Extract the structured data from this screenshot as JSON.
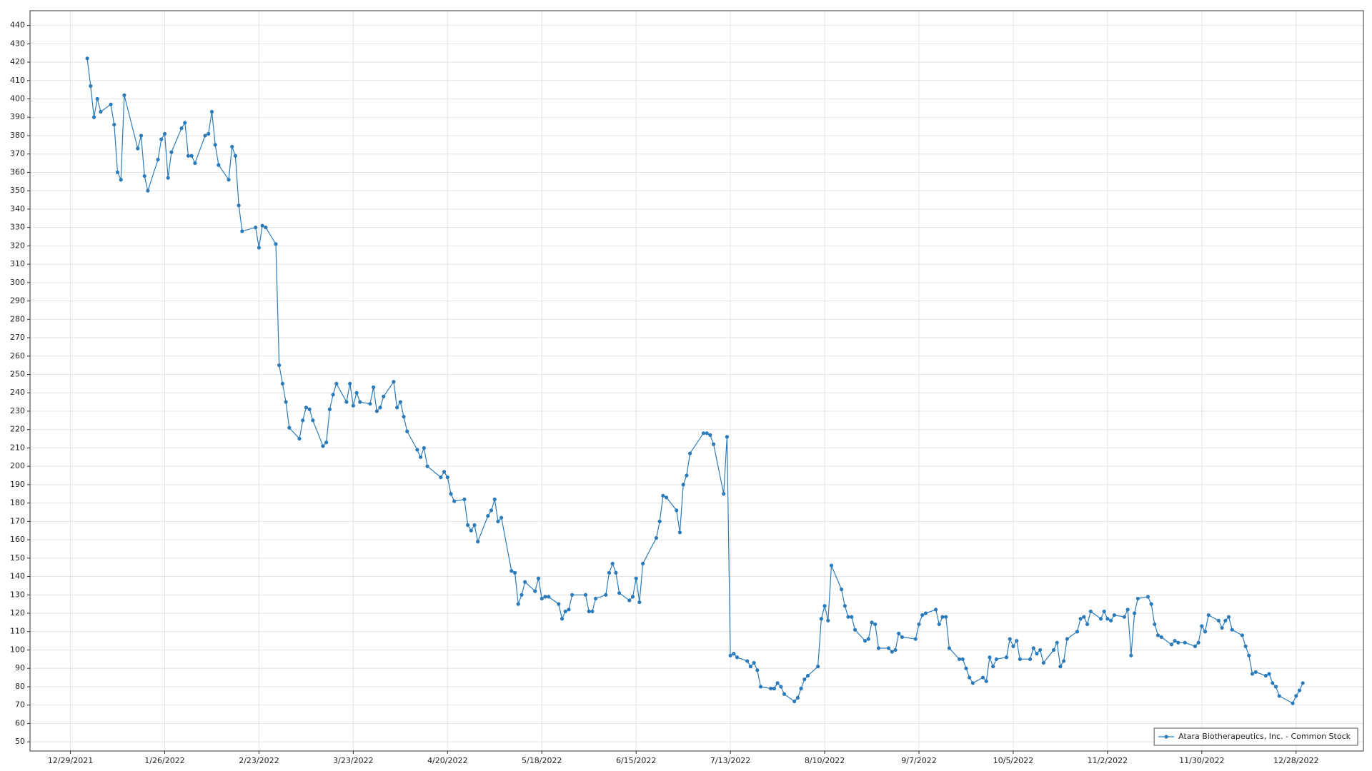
{
  "chart_data": {
    "type": "line",
    "x": [
      "1/3/2022",
      "1/4/2022",
      "1/5/2022",
      "1/6/2022",
      "1/7/2022",
      "1/10/2022",
      "1/11/2022",
      "1/12/2022",
      "1/13/2022",
      "1/14/2022",
      "1/18/2022",
      "1/19/2022",
      "1/20/2022",
      "1/21/2022",
      "1/24/2022",
      "1/25/2022",
      "1/26/2022",
      "1/27/2022",
      "1/28/2022",
      "1/31/2022",
      "2/1/2022",
      "2/2/2022",
      "2/3/2022",
      "2/4/2022",
      "2/7/2022",
      "2/8/2022",
      "2/9/2022",
      "2/10/2022",
      "2/11/2022",
      "2/14/2022",
      "2/15/2022",
      "2/16/2022",
      "2/17/2022",
      "2/18/2022",
      "2/22/2022",
      "2/23/2022",
      "2/24/2022",
      "2/25/2022",
      "2/28/2022",
      "3/1/2022",
      "3/2/2022",
      "3/3/2022",
      "3/4/2022",
      "3/7/2022",
      "3/8/2022",
      "3/9/2022",
      "3/10/2022",
      "3/11/2022",
      "3/14/2022",
      "3/15/2022",
      "3/16/2022",
      "3/17/2022",
      "3/18/2022",
      "3/21/2022",
      "3/22/2022",
      "3/23/2022",
      "3/24/2022",
      "3/25/2022",
      "3/28/2022",
      "3/29/2022",
      "3/30/2022",
      "3/31/2022",
      "4/1/2022",
      "4/4/2022",
      "4/5/2022",
      "4/6/2022",
      "4/7/2022",
      "4/8/2022",
      "4/11/2022",
      "4/12/2022",
      "4/13/2022",
      "4/14/2022",
      "4/18/2022",
      "4/19/2022",
      "4/20/2022",
      "4/21/2022",
      "4/22/2022",
      "4/25/2022",
      "4/26/2022",
      "4/27/2022",
      "4/28/2022",
      "4/29/2022",
      "5/2/2022",
      "5/3/2022",
      "5/4/2022",
      "5/5/2022",
      "5/6/2022",
      "5/9/2022",
      "5/10/2022",
      "5/11/2022",
      "5/12/2022",
      "5/13/2022",
      "5/16/2022",
      "5/17/2022",
      "5/18/2022",
      "5/19/2022",
      "5/20/2022",
      "5/23/2022",
      "5/24/2022",
      "5/25/2022",
      "5/26/2022",
      "5/27/2022",
      "5/31/2022",
      "6/1/2022",
      "6/2/2022",
      "6/3/2022",
      "6/6/2022",
      "6/7/2022",
      "6/8/2022",
      "6/9/2022",
      "6/10/2022",
      "6/13/2022",
      "6/14/2022",
      "6/15/2022",
      "6/16/2022",
      "6/17/2022",
      "6/21/2022",
      "6/22/2022",
      "6/23/2022",
      "6/24/2022",
      "6/27/2022",
      "6/28/2022",
      "6/29/2022",
      "6/30/2022",
      "7/1/2022",
      "7/5/2022",
      "7/6/2022",
      "7/7/2022",
      "7/8/2022",
      "7/11/2022",
      "7/12/2022",
      "7/13/2022",
      "7/14/2022",
      "7/15/2022",
      "7/18/2022",
      "7/19/2022",
      "7/20/2022",
      "7/21/2022",
      "7/22/2022",
      "7/25/2022",
      "7/26/2022",
      "7/27/2022",
      "7/28/2022",
      "7/29/2022",
      "8/1/2022",
      "8/2/2022",
      "8/3/2022",
      "8/4/2022",
      "8/5/2022",
      "8/8/2022",
      "8/9/2022",
      "8/10/2022",
      "8/11/2022",
      "8/12/2022",
      "8/15/2022",
      "8/16/2022",
      "8/17/2022",
      "8/18/2022",
      "8/19/2022",
      "8/22/2022",
      "8/23/2022",
      "8/24/2022",
      "8/25/2022",
      "8/26/2022",
      "8/29/2022",
      "8/30/2022",
      "8/31/2022",
      "9/1/2022",
      "9/2/2022",
      "9/6/2022",
      "9/7/2022",
      "9/8/2022",
      "9/9/2022",
      "9/12/2022",
      "9/13/2022",
      "9/14/2022",
      "9/15/2022",
      "9/16/2022",
      "9/19/2022",
      "9/20/2022",
      "9/21/2022",
      "9/22/2022",
      "9/23/2022",
      "9/26/2022",
      "9/27/2022",
      "9/28/2022",
      "9/29/2022",
      "9/30/2022",
      "10/3/2022",
      "10/4/2022",
      "10/5/2022",
      "10/6/2022",
      "10/7/2022",
      "10/10/2022",
      "10/11/2022",
      "10/12/2022",
      "10/13/2022",
      "10/14/2022",
      "10/17/2022",
      "10/18/2022",
      "10/19/2022",
      "10/20/2022",
      "10/21/2022",
      "10/24/2022",
      "10/25/2022",
      "10/26/2022",
      "10/27/2022",
      "10/28/2022",
      "10/31/2022",
      "11/1/2022",
      "11/2/2022",
      "11/3/2022",
      "11/4/2022",
      "11/7/2022",
      "11/8/2022",
      "11/9/2022",
      "11/10/2022",
      "11/11/2022",
      "11/14/2022",
      "11/15/2022",
      "11/16/2022",
      "11/17/2022",
      "11/18/2022",
      "11/21/2022",
      "11/22/2022",
      "11/23/2022",
      "11/25/2022",
      "11/28/2022",
      "11/29/2022",
      "11/30/2022",
      "12/1/2022",
      "12/2/2022",
      "12/5/2022",
      "12/6/2022",
      "12/7/2022",
      "12/8/2022",
      "12/9/2022",
      "12/12/2022",
      "12/13/2022",
      "12/14/2022",
      "12/15/2022",
      "12/16/2022",
      "12/19/2022",
      "12/20/2022",
      "12/21/2022",
      "12/22/2022",
      "12/23/2022",
      "12/27/2022",
      "12/28/2022",
      "12/29/2022",
      "12/30/2022"
    ],
    "series": [
      {
        "name": "Atara Biotherapeutics, Inc. - Common Stock",
        "color": "#2b7bba",
        "values": [
          422,
          407,
          390,
          400,
          393,
          397,
          386,
          360,
          356,
          402,
          373,
          380,
          358,
          350,
          367,
          378,
          381,
          357,
          371,
          384,
          387,
          369,
          369,
          365,
          380,
          381,
          393,
          375,
          364,
          356,
          374,
          369,
          342,
          328,
          330,
          319,
          331,
          330,
          321,
          255,
          245,
          235,
          221,
          215,
          225,
          232,
          231,
          225,
          211,
          213,
          231,
          239,
          245,
          235,
          245,
          233,
          240,
          235,
          234,
          243,
          230,
          232,
          238,
          246,
          232,
          235,
          227,
          219,
          209,
          205,
          210,
          200,
          194,
          197,
          194,
          185,
          181,
          182,
          168,
          165,
          168,
          159,
          173,
          176,
          182,
          170,
          172,
          143,
          142,
          125,
          130,
          137,
          132,
          139,
          128,
          129,
          129,
          125,
          117,
          121,
          122,
          130,
          130,
          121,
          121,
          128,
          130,
          142,
          147,
          142,
          131,
          127,
          129,
          139,
          126,
          147,
          161,
          170,
          184,
          183,
          176,
          164,
          190,
          195,
          207,
          218,
          218,
          217,
          212,
          185,
          216,
          97,
          98,
          96,
          94,
          91,
          93,
          89,
          80,
          79,
          79,
          82,
          80,
          76,
          72,
          74,
          79,
          84,
          86,
          91,
          117,
          124,
          116,
          146,
          133,
          124,
          118,
          118,
          111,
          105,
          106,
          115,
          114,
          101,
          101,
          99,
          100,
          109,
          107,
          106,
          114,
          119,
          120,
          122,
          114,
          118,
          118,
          101,
          95,
          95,
          90,
          85,
          82,
          85,
          83,
          96,
          91,
          95,
          96,
          106,
          102,
          105,
          95,
          95,
          101,
          98,
          100,
          93,
          100,
          104,
          91,
          94,
          106,
          110,
          117,
          118,
          114,
          121,
          117,
          121,
          117,
          116,
          119,
          118,
          122,
          97,
          120,
          128,
          129,
          125,
          114,
          108,
          107,
          103,
          105,
          104,
          104,
          102,
          104,
          113,
          110,
          119,
          116,
          112,
          116,
          118,
          111,
          108,
          102,
          97,
          87,
          88,
          86,
          87,
          82,
          80,
          75,
          71,
          75,
          78,
          82
        ]
      }
    ],
    "xlim": [
      "12/17/2021",
      "1/17/2023"
    ],
    "xticks": [
      "12/29/2021",
      "1/26/2022",
      "2/23/2022",
      "3/23/2022",
      "4/20/2022",
      "5/18/2022",
      "6/15/2022",
      "7/13/2022",
      "8/10/2022",
      "9/7/2022",
      "10/5/2022",
      "11/2/2022",
      "11/30/2022",
      "12/28/2022"
    ],
    "ylim": [
      45,
      448
    ],
    "yticks": [
      50,
      60,
      70,
      80,
      90,
      100,
      110,
      120,
      130,
      140,
      150,
      160,
      170,
      180,
      190,
      200,
      210,
      220,
      230,
      240,
      250,
      260,
      270,
      280,
      290,
      300,
      310,
      320,
      330,
      340,
      350,
      360,
      370,
      380,
      390,
      400,
      410,
      420,
      430,
      440
    ],
    "grid": true,
    "legend": "lower right"
  }
}
